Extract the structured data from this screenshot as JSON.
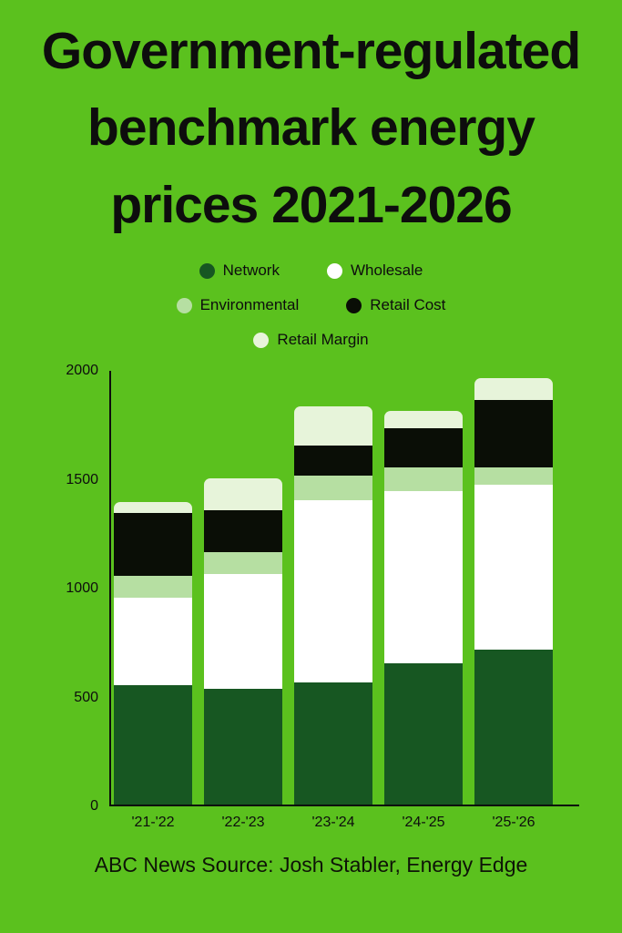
{
  "title": {
    "lines": [
      "Government-regulated",
      "benchmark energy",
      "prices 2021-2026"
    ]
  },
  "legend": {
    "rows": [
      [
        {
          "label": "Network",
          "color": "#175722"
        },
        {
          "label": "Wholesale",
          "color": "#ffffff"
        }
      ],
      [
        {
          "label": "Environmental",
          "color": "#b6dfa2"
        },
        {
          "label": "Retail Cost",
          "color": "#0a0e06"
        }
      ],
      [
        {
          "label": "Retail Margin",
          "color": "#e7f4da"
        }
      ]
    ]
  },
  "chart_data": {
    "type": "bar",
    "stacked": true,
    "title": "Government-regulated benchmark energy prices 2021-2026",
    "categories": [
      "'21-'22",
      "'22-'23",
      "'23-'24",
      "'24-'25",
      "'25-'26"
    ],
    "series": [
      {
        "name": "Network",
        "color": "#175722",
        "values": [
          550,
          530,
          560,
          650,
          710
        ]
      },
      {
        "name": "Wholesale",
        "color": "#ffffff",
        "values": [
          400,
          530,
          840,
          790,
          760
        ]
      },
      {
        "name": "Environmental",
        "color": "#b6dfa2",
        "values": [
          100,
          100,
          110,
          110,
          80
        ]
      },
      {
        "name": "Retail Cost",
        "color": "#0a0e06",
        "values": [
          290,
          190,
          140,
          180,
          310
        ]
      },
      {
        "name": "Retail Margin",
        "color": "#e7f4da",
        "values": [
          50,
          150,
          180,
          80,
          100
        ]
      }
    ],
    "totals": [
      1390,
      1500,
      1830,
      1810,
      1960
    ],
    "yticks": [
      0,
      500,
      1000,
      1500,
      2000
    ],
    "ylim": [
      0,
      2000
    ],
    "xlabel": "",
    "ylabel": "",
    "grid": false,
    "legend_position": "top"
  },
  "footer": {
    "text": "ABC News Source: Josh Stabler, Energy Edge"
  },
  "colors": {
    "background": "#5bc11e",
    "axis": "#0d0d0d",
    "text": "#0d0d0d"
  }
}
